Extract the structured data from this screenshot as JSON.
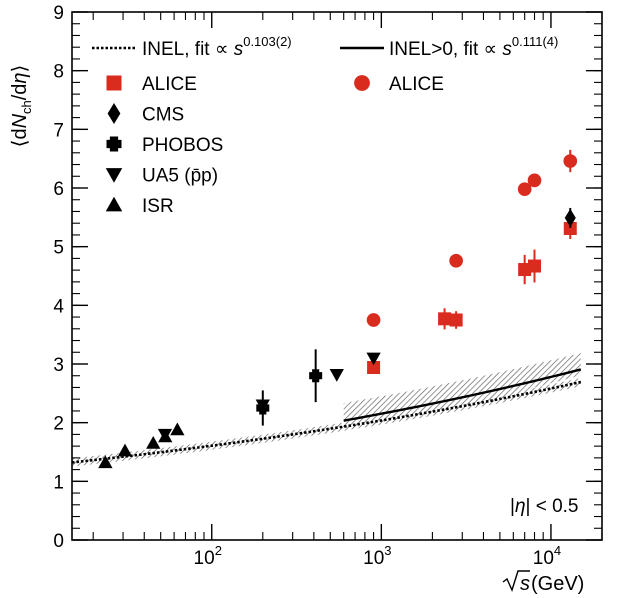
{
  "chart_data": {
    "type": "scatter",
    "x_scale": "log",
    "xlim": [
      15,
      20000
    ],
    "ylim": [
      0,
      9
    ],
    "y_ticks": [
      0,
      1,
      2,
      3,
      4,
      5,
      6,
      7,
      8,
      9
    ],
    "x_tick_labels": [
      {
        "value": 100,
        "base": "10",
        "exp": "2"
      },
      {
        "value": 1000,
        "base": "10",
        "exp": "3"
      },
      {
        "value": 10000,
        "base": "10",
        "exp": "4"
      }
    ],
    "xlabel": {
      "radicand": "s",
      "suffix": " (GeV)"
    },
    "ylabel": {
      "open": "⟨d",
      "N": "N",
      "sub": "ch",
      "mid": "/d",
      "eta": "η",
      "close": "⟩"
    },
    "annotation": {
      "bar": "|",
      "eta": "η",
      "rest": "| < 0.5"
    },
    "legend": {
      "left_title": {
        "text": "INEL, fit ∝ ",
        "s": "s",
        "exp": "0.103(2)"
      },
      "right_title": {
        "text": "INEL>0, fit ∝ ",
        "s": "s",
        "exp": "0.111(4)"
      },
      "left_entries": [
        {
          "label": "ALICE",
          "marker": "square",
          "color": "#d92b1e"
        },
        {
          "label": "CMS",
          "marker": "diamond",
          "color": "#000000"
        },
        {
          "label": "PHOBOS",
          "marker": "cross",
          "color": "#000000"
        },
        {
          "label": "UA5 (p̄p)",
          "marker": "triangle-down",
          "color": "#000000"
        },
        {
          "label": "ISR",
          "marker": "triangle-up",
          "color": "#000000"
        }
      ],
      "right_entries": [
        {
          "label": "ALICE",
          "marker": "circle",
          "color": "#d92b1e"
        }
      ]
    },
    "fits": [
      {
        "name": "INEL",
        "style": "dotted",
        "a": 1.0,
        "b": 0.103,
        "x_range": [
          15,
          15000
        ],
        "band": 0.07
      },
      {
        "name": "INEL>0",
        "style": "solid",
        "a": 1.0,
        "b": 0.111,
        "x_range": [
          600,
          15000
        ],
        "band_lo": 0.16,
        "band_hi": 0.3,
        "band_low_end": 0.1,
        "band_high_end": 0.28
      }
    ],
    "series": [
      {
        "name": "ALICE",
        "group": "INEL",
        "marker": "square",
        "color": "#d92b1e",
        "points": [
          {
            "x": 900,
            "y": 2.94,
            "err": 0.05
          },
          {
            "x": 2360,
            "y": 3.77,
            "err": 0.18
          },
          {
            "x": 2760,
            "y": 3.75,
            "err": 0.15
          },
          {
            "x": 7000,
            "y": 4.61,
            "err": 0.25
          },
          {
            "x": 8000,
            "y": 4.67,
            "err": 0.28
          },
          {
            "x": 13000,
            "y": 5.31,
            "err": 0.18
          }
        ]
      },
      {
        "name": "CMS",
        "group": "INEL",
        "marker": "diamond",
        "color": "#000000",
        "points": [
          {
            "x": 13000,
            "y": 5.49,
            "err": 0.17
          }
        ]
      },
      {
        "name": "PHOBOS",
        "group": "INEL",
        "marker": "cross",
        "color": "#000000",
        "points": [
          {
            "x": 200,
            "y": 2.25,
            "err": 0.3
          },
          {
            "x": 410,
            "y": 2.8,
            "err": 0.45
          }
        ]
      },
      {
        "name": "UA5",
        "group": "INEL",
        "marker": "triangle-down",
        "color": "#000000",
        "points": [
          {
            "x": 53,
            "y": 1.8,
            "err": 0.05
          },
          {
            "x": 200,
            "y": 2.3,
            "err": 0.06
          },
          {
            "x": 546,
            "y": 2.82,
            "err": 0.06
          },
          {
            "x": 900,
            "y": 3.1,
            "err": 0.06
          }
        ]
      },
      {
        "name": "ISR",
        "group": "INEL",
        "marker": "triangle-up",
        "color": "#000000",
        "points": [
          {
            "x": 23.6,
            "y": 1.32,
            "err": 0.03
          },
          {
            "x": 30.8,
            "y": 1.52,
            "err": 0.03
          },
          {
            "x": 45.2,
            "y": 1.65,
            "err": 0.03
          },
          {
            "x": 53.2,
            "y": 1.76,
            "err": 0.03
          },
          {
            "x": 62.7,
            "y": 1.88,
            "err": 0.03
          }
        ]
      },
      {
        "name": "ALICE",
        "group": "INEL>0",
        "marker": "circle",
        "color": "#d92b1e",
        "points": [
          {
            "x": 900,
            "y": 3.75,
            "err": 0.05
          },
          {
            "x": 2760,
            "y": 4.76,
            "err": 0.05
          },
          {
            "x": 7000,
            "y": 5.98,
            "err": 0.09
          },
          {
            "x": 8000,
            "y": 6.13,
            "err": 0.09
          },
          {
            "x": 13000,
            "y": 6.46,
            "err": 0.19
          }
        ]
      }
    ]
  }
}
